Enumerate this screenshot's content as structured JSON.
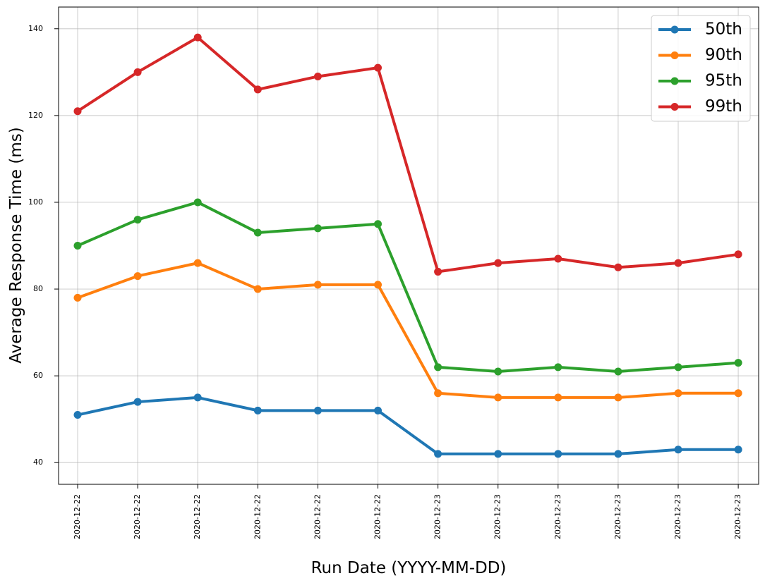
{
  "chart_data": {
    "type": "line",
    "title": "",
    "xlabel": "Run Date (YYYY-MM-DD)",
    "ylabel": "Average Response Time (ms)",
    "categories": [
      "2020-12-22",
      "2020-12-22",
      "2020-12-22",
      "2020-12-22",
      "2020-12-22",
      "2020-12-22",
      "2020-12-23",
      "2020-12-23",
      "2020-12-23",
      "2020-12-23",
      "2020-12-23",
      "2020-12-23"
    ],
    "ylim": [
      35,
      145
    ],
    "yticks": [
      40,
      60,
      80,
      100,
      120,
      140
    ],
    "grid": true,
    "legend_position": "top-right",
    "series": [
      {
        "name": "50th",
        "color": "#1f77b4",
        "values": [
          51,
          54,
          55,
          52,
          52,
          52,
          42,
          42,
          42,
          42,
          43,
          43
        ]
      },
      {
        "name": "90th",
        "color": "#ff7f0e",
        "values": [
          78,
          83,
          86,
          80,
          81,
          81,
          56,
          55,
          55,
          55,
          56,
          56
        ]
      },
      {
        "name": "95th",
        "color": "#2ca02c",
        "values": [
          90,
          96,
          100,
          93,
          94,
          95,
          62,
          61,
          62,
          61,
          62,
          63
        ]
      },
      {
        "name": "99th",
        "color": "#d62728",
        "values": [
          121,
          130,
          138,
          126,
          129,
          131,
          84,
          86,
          87,
          85,
          86,
          88
        ]
      }
    ]
  }
}
